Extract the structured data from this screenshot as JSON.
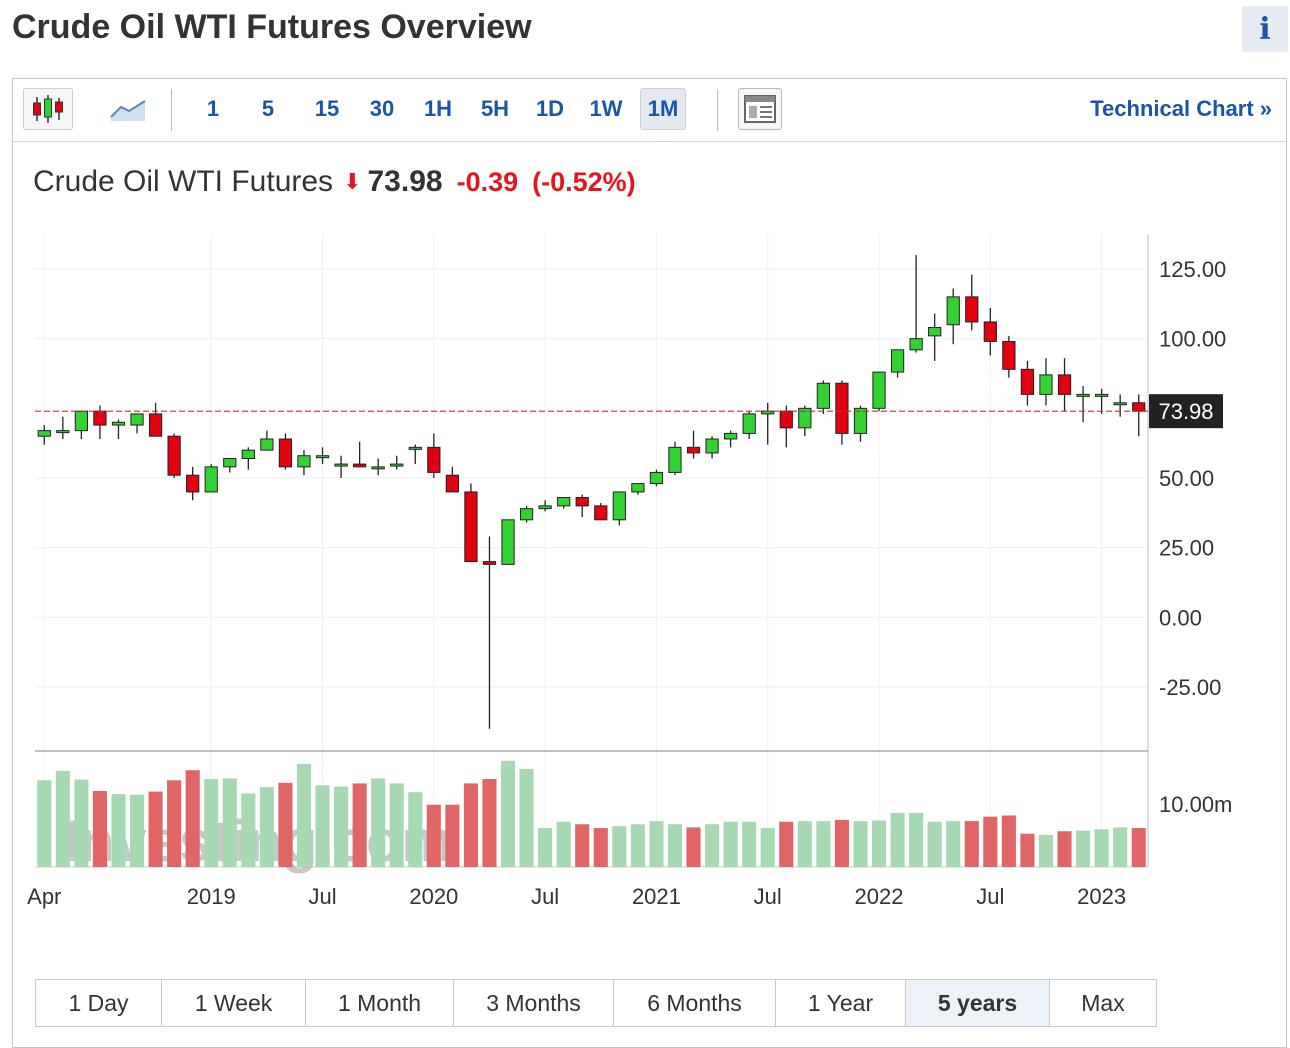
{
  "page": {
    "title": "Crude Oil WTI Futures Overview",
    "info_label": "i"
  },
  "toolbar": {
    "intervals": [
      "1",
      "5",
      "15",
      "30",
      "1H",
      "5H",
      "1D",
      "1W",
      "1M"
    ],
    "active_interval": "1M",
    "technical_chart_label": "Technical Chart »",
    "icons": [
      "candlestick-icon",
      "area-chart-icon",
      "layout-icon"
    ]
  },
  "quote": {
    "name": "Crude Oil WTI Futures",
    "price": "73.98",
    "change": "-0.39",
    "change_pct": "(-0.52%)",
    "direction": "down"
  },
  "ranges": {
    "items": [
      "1 Day",
      "1 Week",
      "1 Month",
      "3 Months",
      "6 Months",
      "1 Year",
      "5 years",
      "Max"
    ],
    "active": "5 years"
  },
  "colors": {
    "up": "#33d233",
    "down": "#e3000f",
    "vol_up": "#a6d9b2",
    "vol_down": "#e06666",
    "link": "#1a56a5",
    "last_price_bg": "#222222"
  },
  "chart_data": {
    "type": "candlestick",
    "interval": "monthly",
    "x": [
      "2018-04",
      "2018-05",
      "2018-06",
      "2018-07",
      "2018-08",
      "2018-09",
      "2018-10",
      "2018-11",
      "2018-12",
      "2019-01",
      "2019-02",
      "2019-03",
      "2019-04",
      "2019-05",
      "2019-06",
      "2019-07",
      "2019-08",
      "2019-09",
      "2019-10",
      "2019-11",
      "2019-12",
      "2020-01",
      "2020-02",
      "2020-03",
      "2020-04",
      "2020-05",
      "2020-06",
      "2020-07",
      "2020-08",
      "2020-09",
      "2020-10",
      "2020-11",
      "2020-12",
      "2021-01",
      "2021-02",
      "2021-03",
      "2021-04",
      "2021-05",
      "2021-06",
      "2021-07",
      "2021-08",
      "2021-09",
      "2021-10",
      "2021-11",
      "2021-12",
      "2022-01",
      "2022-02",
      "2022-03",
      "2022-04",
      "2022-05",
      "2022-06",
      "2022-07",
      "2022-08",
      "2022-09",
      "2022-10",
      "2022-11",
      "2022-12",
      "2023-01",
      "2023-02",
      "2023-03"
    ],
    "open": [
      65,
      67,
      67,
      74,
      69,
      69,
      73,
      65,
      51,
      45,
      54,
      57,
      60,
      64,
      54,
      58,
      55,
      55,
      54,
      55,
      61,
      61,
      51,
      45,
      20,
      19,
      35,
      39,
      40,
      43,
      40,
      35,
      45,
      48,
      52,
      61,
      59,
      64,
      66,
      73,
      74,
      68,
      75,
      84,
      66,
      75,
      88,
      96,
      101,
      105,
      115,
      106,
      99,
      89,
      80,
      87,
      80,
      80,
      77,
      77
    ],
    "high": [
      69,
      72,
      74,
      76,
      71,
      73,
      77,
      66,
      54,
      55,
      57,
      61,
      67,
      66,
      60,
      61,
      58,
      63,
      57,
      58,
      62,
      66,
      54,
      48,
      29,
      35,
      40,
      42,
      43,
      44,
      41,
      45,
      48,
      53,
      63,
      67,
      65,
      67,
      74,
      77,
      76,
      76,
      85,
      85,
      76,
      88,
      96,
      130,
      109,
      118,
      123,
      111,
      101,
      92,
      93,
      93,
      83,
      82,
      80,
      80
    ],
    "low": [
      62,
      64,
      64,
      64,
      64,
      66,
      65,
      50,
      42,
      45,
      52,
      53,
      60,
      53,
      51,
      55,
      50,
      54,
      51,
      53,
      55,
      50,
      45,
      20,
      -40,
      19,
      34,
      38,
      39,
      36,
      35,
      33,
      44,
      47,
      51,
      57,
      57,
      61,
      64,
      62,
      61,
      65,
      73,
      62,
      63,
      74,
      86,
      95,
      92,
      98,
      103,
      94,
      86,
      76,
      76,
      74,
      70,
      73,
      72,
      65
    ],
    "close": [
      67,
      67,
      74,
      69,
      70,
      73,
      65,
      51,
      45,
      54,
      57,
      60,
      64,
      54,
      58,
      58,
      55,
      54,
      54,
      55,
      61,
      52,
      45,
      20,
      19,
      35,
      39,
      40,
      43,
      40,
      35,
      45,
      48,
      52,
      61,
      59,
      64,
      66,
      73,
      74,
      68,
      75,
      84,
      66,
      75,
      88,
      96,
      100,
      104,
      115,
      106,
      99,
      89,
      80,
      87,
      80,
      80,
      80,
      77,
      74
    ],
    "volume_millions": [
      13.8,
      15.3,
      13.9,
      12.1,
      11.6,
      11.5,
      12.0,
      13.8,
      15.4,
      14.0,
      14.1,
      11.7,
      12.7,
      13.4,
      16.4,
      13.0,
      12.8,
      13.3,
      14.1,
      13.3,
      11.9,
      9.9,
      9.9,
      13.3,
      14.0,
      16.9,
      15.6,
      6.2,
      7.2,
      6.8,
      6.2,
      6.5,
      6.8,
      7.3,
      6.8,
      6.3,
      6.8,
      7.2,
      7.2,
      6.2,
      7.2,
      7.3,
      7.3,
      7.5,
      7.3,
      7.4,
      8.6,
      8.6,
      7.2,
      7.3,
      7.3,
      8.0,
      8.2,
      5.3,
      5.1,
      5.7,
      5.8,
      6.0,
      6.3,
      6.2
    ],
    "ylim": [
      -40,
      133
    ],
    "y_ticks": [
      "125.00",
      "100.00",
      "50.00",
      "25.00",
      "0.00",
      "-25.00"
    ],
    "y_tick_values": [
      125,
      100,
      50,
      25,
      0,
      -25
    ],
    "volume_tick": "10.00m",
    "volume_tick_value": 10,
    "x_ticks": [
      "Apr",
      "2019",
      "Jul",
      "2020",
      "Jul",
      "2021",
      "Jul",
      "2022",
      "Jul",
      "2023"
    ],
    "x_tick_index": [
      0,
      9,
      15,
      21,
      27,
      33,
      39,
      45,
      51,
      57
    ],
    "last_price": 73.98,
    "last_price_label": "73.98",
    "watermark": "Investing.com"
  }
}
